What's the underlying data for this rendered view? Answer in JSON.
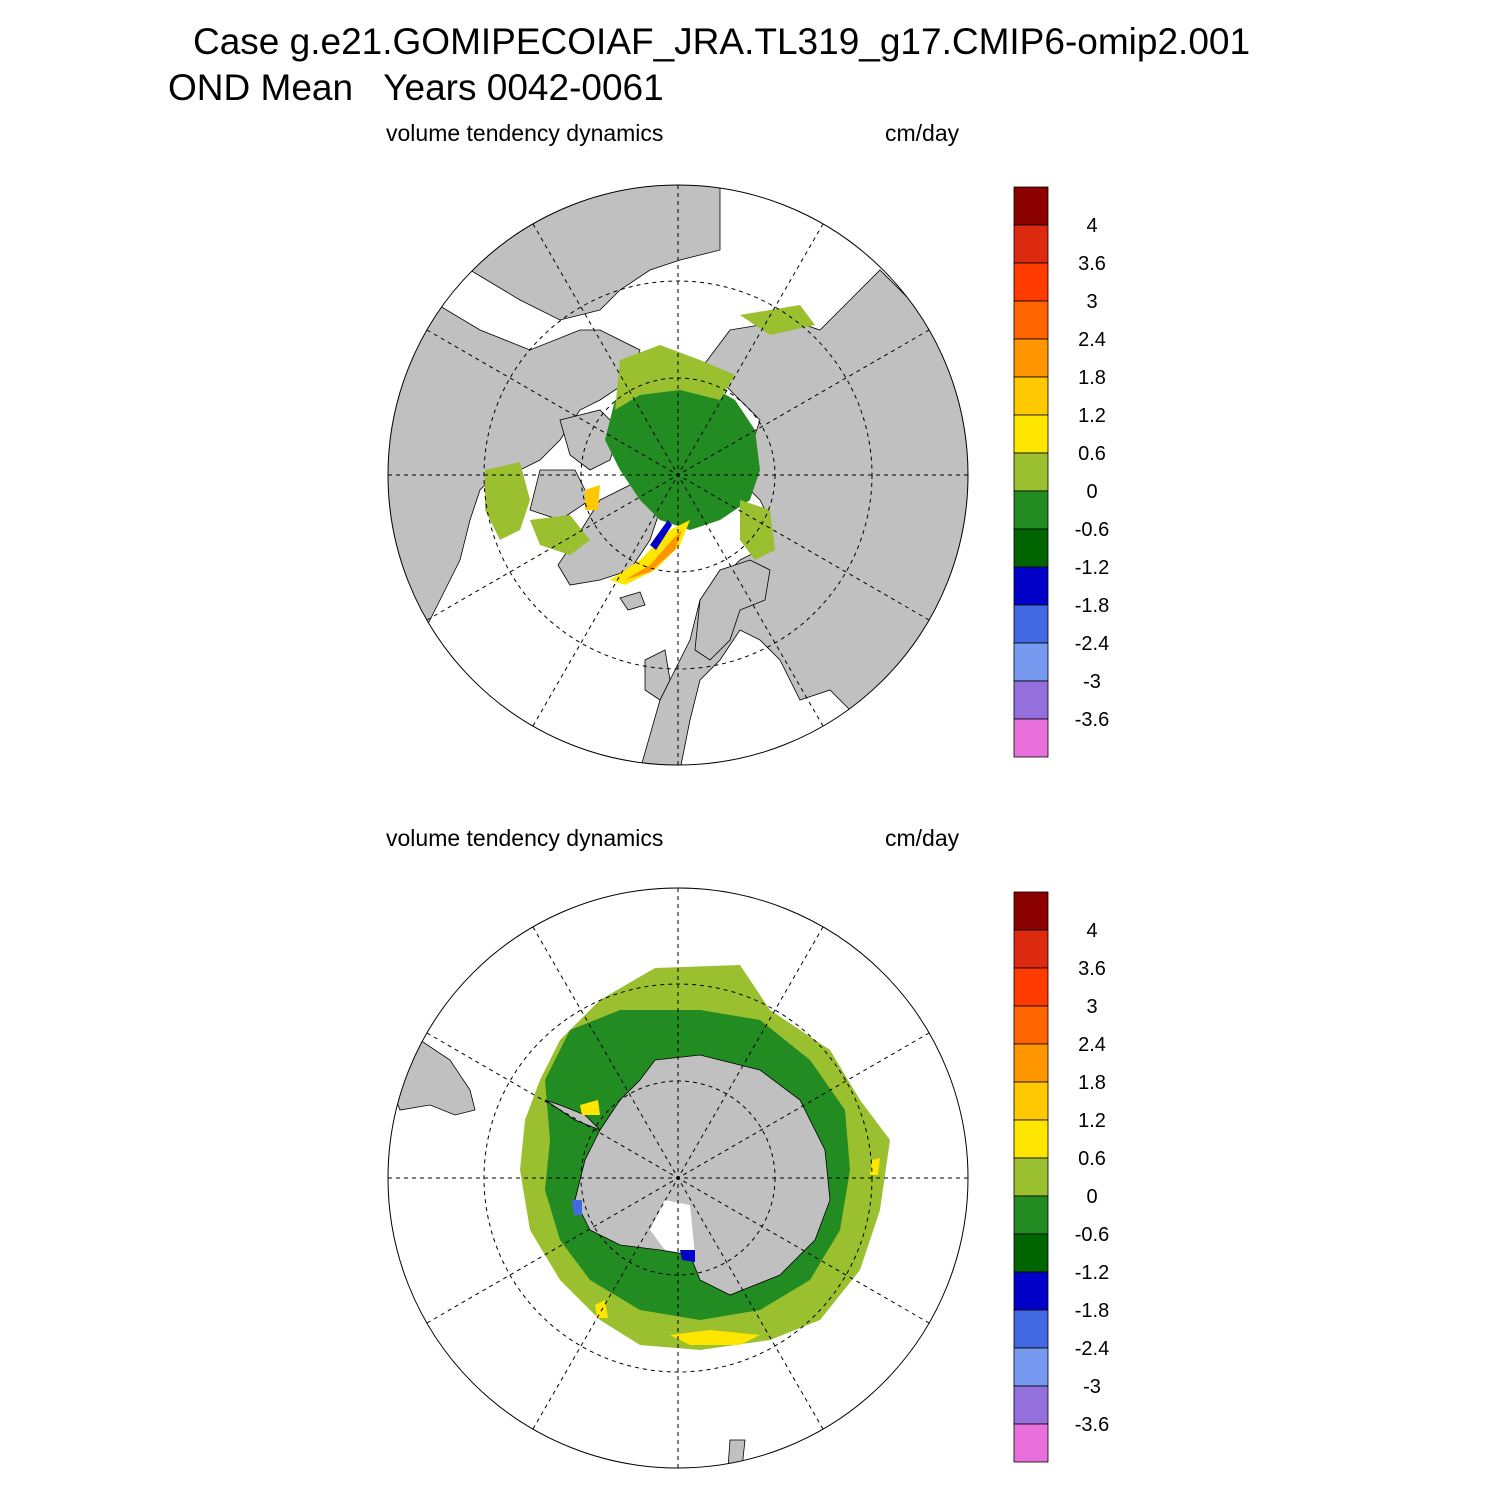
{
  "header": {
    "case_line": "Case g.e21.GOMIPECOIAF_JRA.TL319_g17.CMIP6-omip2.001",
    "period_line": "OND Mean   Years 0042-0061"
  },
  "panels": [
    {
      "id": "arctic",
      "hemisphere": "north",
      "variable_label": "volume tendency dynamics",
      "units_label": "cm/day"
    },
    {
      "id": "antarctic",
      "hemisphere": "south",
      "variable_label": "volume tendency dynamics",
      "units_label": "cm/day"
    }
  ],
  "colorbar": {
    "levels": [
      "4",
      "3.6",
      "3",
      "2.4",
      "1.8",
      "1.2",
      "0.6",
      "0",
      "-0.6",
      "-1.2",
      "-1.8",
      "-2.4",
      "-3",
      "-3.6"
    ],
    "colors": [
      "#8b0000",
      "#dc2a10",
      "#ff3b00",
      "#ff6400",
      "#ff9600",
      "#ffc800",
      "#ffe600",
      "#9abf2f",
      "#228b22",
      "#006400",
      "#0000c8",
      "#4169e1",
      "#7799f0",
      "#9370db",
      "#e870dc"
    ]
  },
  "map_colors": {
    "land": "#c0c0c0",
    "ocean_no_data": "#ffffff",
    "near_zero_positive": "#9abf2f",
    "near_zero_negative": "#228b22",
    "gridline": "#000000"
  }
}
